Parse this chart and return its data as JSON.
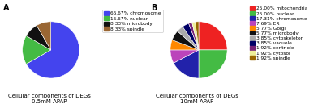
{
  "chart_A": {
    "title": "Cellular components of DEGs\n0.5mM APAP",
    "slices": [
      66.67,
      16.67,
      8.33,
      8.33
    ],
    "labels": [
      "66.67% chromosome",
      "16.67% nuclear",
      "8.33% microbody",
      "8.33% spindle"
    ],
    "colors": [
      "#4444ee",
      "#44bb44",
      "#111111",
      "#996633"
    ],
    "startangle": 90
  },
  "chart_B": {
    "title": "Cellular components of DEGs\n10mM APAP",
    "slices": [
      25.0,
      25.0,
      17.31,
      7.69,
      5.77,
      5.77,
      3.85,
      3.85,
      1.92,
      1.92,
      1.92
    ],
    "labels": [
      "25.00% mitochondria",
      "25.00% nuclear",
      "17.31% chromosome",
      "7.69% ER",
      "5.77% Golgi",
      "5.77% microbody",
      "3.85% cytoskeleton",
      "3.85% vacuole",
      "1.92% centriole",
      "1.92% cytosol",
      "1.92% spindle"
    ],
    "colors": [
      "#ee2222",
      "#44bb44",
      "#2222aa",
      "#bb44bb",
      "#ff8800",
      "#111111",
      "#aaaaaa",
      "#000066",
      "#772277",
      "#eeee99",
      "#996600"
    ],
    "startangle": 90
  },
  "label_A": "A",
  "label_B": "B",
  "title_fontsize": 5.0,
  "legend_fontsize": 4.2,
  "label_fontsize": 7.0
}
